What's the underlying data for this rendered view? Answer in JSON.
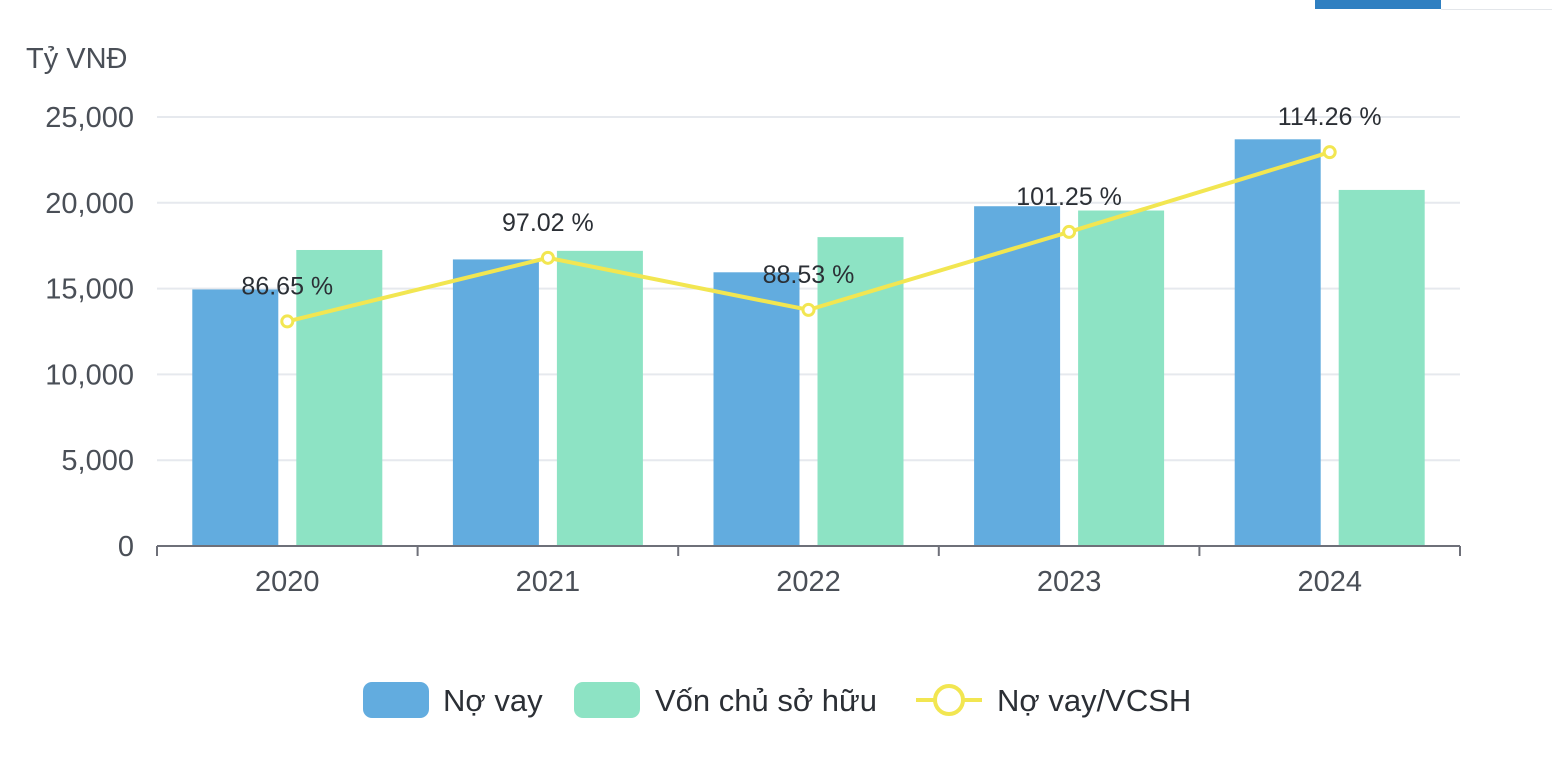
{
  "chart_data": {
    "type": "bar",
    "ylabel": "Tỷ VNĐ",
    "categories": [
      "2020",
      "2021",
      "2022",
      "2023",
      "2024"
    ],
    "ylim": [
      0,
      25000
    ],
    "yticks": [
      0,
      5000,
      10000,
      15000,
      20000,
      25000
    ],
    "ytick_labels": [
      "0",
      "5,000",
      "10,000",
      "15,000",
      "20,000",
      "25,000"
    ],
    "grid": true,
    "legend_position": "bottom-center",
    "series": [
      {
        "name": "Nợ vay",
        "kind": "bar",
        "color": "#62acdf",
        "values": [
          14950,
          16700,
          15950,
          19800,
          23700
        ]
      },
      {
        "name": "Vốn chủ sở hữu",
        "kind": "bar",
        "color": "#8de3c4",
        "values": [
          17250,
          17200,
          18000,
          19550,
          20750
        ]
      },
      {
        "name": "Nợ vay/VCSH",
        "kind": "line",
        "color": "#f2e651",
        "values": [
          86.65,
          97.02,
          88.53,
          101.25,
          114.26
        ],
        "labels": [
          "86.65 %",
          "97.02 %",
          "88.53 %",
          "101.25 %",
          "114.26 %"
        ],
        "axis_range": [
          50,
          120
        ]
      }
    ]
  },
  "ui": {
    "tab_active_color": "#2f7fc1"
  }
}
